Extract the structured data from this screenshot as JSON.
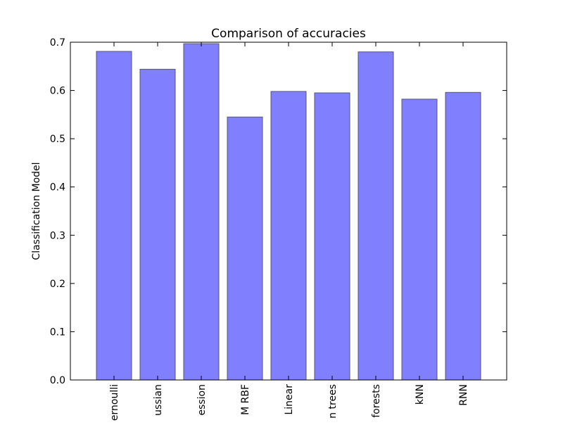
{
  "chart_data": {
    "type": "bar",
    "title": "Comparison of accuracies",
    "xlabel": "",
    "ylabel": "Classification Model",
    "categories": [
      "Naive Bayes Bernoulli",
      "Naive Bayes Gaussian",
      "Logistic Regression",
      "SVM RBF",
      "SVM Linear",
      "Decision trees",
      "Random forests",
      "kNN",
      "RNN"
    ],
    "category_labels_visible": [
      "ernoulli",
      "ussian",
      "ession",
      "M RBF",
      "Linear",
      "n trees",
      "forests",
      "kNN",
      "RNN"
    ],
    "values": [
      0.681,
      0.644,
      0.697,
      0.545,
      0.598,
      0.595,
      0.68,
      0.582,
      0.596
    ],
    "ylim": [
      0,
      0.7
    ],
    "yticks": [
      0.0,
      0.1,
      0.2,
      0.3,
      0.4,
      0.5,
      0.6,
      0.7
    ],
    "ytick_labels": [
      "0.0",
      "0.1",
      "0.2",
      "0.3",
      "0.4",
      "0.5",
      "0.6",
      "0.7"
    ],
    "grid": false,
    "colors": {
      "bar_fill": "#8080ff",
      "bar_stroke": "#555577",
      "axis": "#000000"
    }
  }
}
